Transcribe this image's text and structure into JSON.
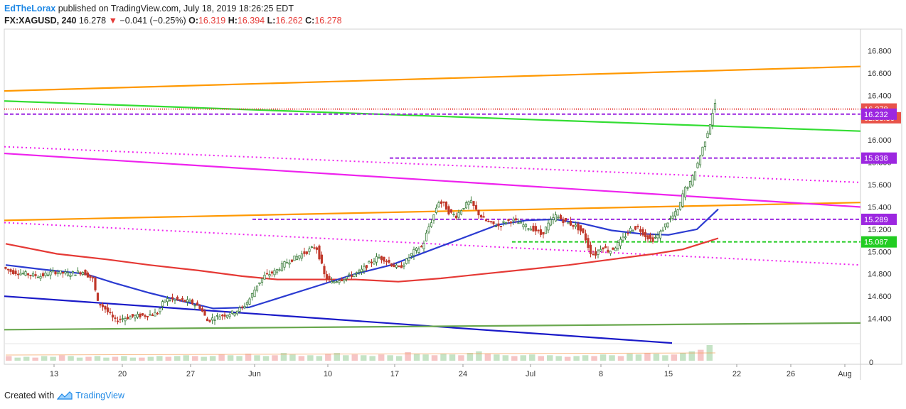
{
  "header": {
    "user": "EdTheLorax",
    "published": "published on TradingView.com, July 18, 2019 18:26:25 EDT",
    "symbol": "FX:XAGUSD, 240",
    "last": "16.278",
    "change": "−0.041 (−0.25%)",
    "open_label": "O:",
    "open": "16.319",
    "high_label": "H:",
    "high": "16.394",
    "low_label": "L:",
    "low": "16.262",
    "close_label": "C:",
    "close": "16.278"
  },
  "footer": {
    "created_with": "Created with",
    "brand": "TradingView"
  },
  "colors": {
    "up": "#3f7f3f",
    "down": "#c0392b",
    "ma_red": "#e53935",
    "ma_blue": "#2b3bd1",
    "orange": "#ff9800",
    "green_line": "#33dd33",
    "magenta": "#ee22ee",
    "purple": "#9c27e0",
    "trend_blue": "#1a1ac8",
    "olive": "#6aa84f",
    "last_price": "#e8534a"
  },
  "chart_data": {
    "type": "candlestick",
    "symbol": "XAGUSD",
    "interval": "240",
    "ylim": [
      14.2,
      16.95
    ],
    "y_ticks": [
      "16.800",
      "16.600",
      "16.400",
      "16.200",
      "16.000",
      "15.800",
      "15.600",
      "15.400",
      "15.200",
      "15.000",
      "14.800",
      "14.600",
      "14.400"
    ],
    "x_ticks": [
      "13",
      "20",
      "27",
      "Jun",
      "10",
      "17",
      "24",
      "Jul",
      "8",
      "15",
      "22",
      "26",
      "Aug"
    ],
    "price_tags": [
      {
        "label": "16.278",
        "value": 16.278,
        "color": "#e8534a"
      },
      {
        "label": "02:33:36",
        "value": 16.2,
        "color": "#e8534a"
      },
      {
        "label": "16.232",
        "value": 16.232,
        "color": "#9c27e0"
      },
      {
        "label": "15.838",
        "value": 15.838,
        "color": "#9c27e0"
      },
      {
        "label": "15.289",
        "value": 15.289,
        "color": "#9c27e0"
      },
      {
        "label": "15.087",
        "value": 15.087,
        "color": "#22cc22"
      },
      {
        "label": "0",
        "value": null,
        "color": "#333333"
      }
    ],
    "price_path": [
      [
        0,
        14.9
      ],
      [
        10,
        14.85
      ],
      [
        20,
        14.82
      ],
      [
        40,
        14.8
      ],
      [
        60,
        14.78
      ],
      [
        80,
        14.82
      ],
      [
        100,
        14.8
      ],
      [
        120,
        14.82
      ],
      [
        135,
        14.75
      ],
      [
        140,
        14.55
      ],
      [
        150,
        14.5
      ],
      [
        160,
        14.42
      ],
      [
        165,
        14.38
      ],
      [
        175,
        14.4
      ],
      [
        190,
        14.42
      ],
      [
        210,
        14.43
      ],
      [
        225,
        14.45
      ],
      [
        235,
        14.57
      ],
      [
        250,
        14.57
      ],
      [
        270,
        14.55
      ],
      [
        285,
        14.5
      ],
      [
        295,
        14.38
      ],
      [
        310,
        14.42
      ],
      [
        330,
        14.45
      ],
      [
        345,
        14.5
      ],
      [
        355,
        14.58
      ],
      [
        365,
        14.7
      ],
      [
        375,
        14.78
      ],
      [
        390,
        14.82
      ],
      [
        405,
        14.9
      ],
      [
        420,
        14.95
      ],
      [
        435,
        15.0
      ],
      [
        448,
        15.05
      ],
      [
        455,
        14.9
      ],
      [
        460,
        14.78
      ],
      [
        470,
        14.72
      ],
      [
        480,
        14.75
      ],
      [
        495,
        14.78
      ],
      [
        510,
        14.82
      ],
      [
        520,
        14.88
      ],
      [
        535,
        14.95
      ],
      [
        545,
        14.93
      ],
      [
        555,
        14.88
      ],
      [
        565,
        14.85
      ],
      [
        575,
        14.92
      ],
      [
        585,
        15.0
      ],
      [
        598,
        15.05
      ],
      [
        605,
        15.2
      ],
      [
        612,
        15.3
      ],
      [
        620,
        15.45
      ],
      [
        628,
        15.42
      ],
      [
        635,
        15.35
      ],
      [
        645,
        15.32
      ],
      [
        655,
        15.4
      ],
      [
        665,
        15.45
      ],
      [
        675,
        15.35
      ],
      [
        685,
        15.28
      ],
      [
        695,
        15.25
      ],
      [
        705,
        15.23
      ],
      [
        715,
        15.27
      ],
      [
        725,
        15.28
      ],
      [
        735,
        15.25
      ],
      [
        745,
        15.22
      ],
      [
        755,
        15.2
      ],
      [
        765,
        15.15
      ],
      [
        775,
        15.25
      ],
      [
        785,
        15.32
      ],
      [
        795,
        15.28
      ],
      [
        805,
        15.25
      ],
      [
        815,
        15.22
      ],
      [
        825,
        15.15
      ],
      [
        833,
        15.0
      ],
      [
        840,
        14.97
      ],
      [
        850,
        15.05
      ],
      [
        860,
        15.0
      ],
      [
        870,
        15.05
      ],
      [
        880,
        15.12
      ],
      [
        890,
        15.2
      ],
      [
        900,
        15.22
      ],
      [
        910,
        15.15
      ],
      [
        920,
        15.1
      ],
      [
        930,
        15.15
      ],
      [
        940,
        15.25
      ],
      [
        950,
        15.32
      ],
      [
        958,
        15.38
      ],
      [
        965,
        15.55
      ],
      [
        975,
        15.62
      ],
      [
        985,
        15.8
      ],
      [
        995,
        16.0
      ],
      [
        1002,
        16.15
      ],
      [
        1008,
        16.32
      ]
    ],
    "volumes": [
      0.3,
      0.2,
      0.25,
      0.2,
      0.3,
      0.25,
      0.35,
      0.3,
      0.2,
      0.25,
      0.3,
      0.2,
      0.25,
      0.3,
      0.2,
      0.2,
      0.25,
      0.3,
      0.25,
      0.3,
      0.35,
      0.3,
      0.25,
      0.3,
      0.4,
      0.35,
      0.3,
      0.45,
      0.35,
      0.3,
      0.35,
      0.5,
      0.4,
      0.3,
      0.35,
      0.3,
      0.45,
      0.5,
      0.35,
      0.4,
      0.35,
      0.3,
      0.4,
      0.35,
      0.3,
      0.55,
      0.45,
      0.4,
      0.35,
      0.45,
      0.4,
      0.35,
      0.5,
      0.6,
      0.45,
      0.4,
      0.35,
      0.3,
      0.35,
      0.4,
      0.3,
      0.35,
      0.3,
      0.25,
      0.3,
      0.35,
      0.3,
      0.4,
      0.35,
      0.3,
      0.45,
      0.4,
      0.5,
      0.45,
      0.35,
      0.4,
      0.5,
      0.6,
      0.7,
      1.0
    ],
    "series": [
      {
        "name": "",
        "color": "#e53935",
        "points": [
          [
            8,
            15.07
          ],
          [
            80,
            14.98
          ],
          [
            150,
            14.93
          ],
          [
            210,
            14.88
          ],
          [
            280,
            14.83
          ],
          [
            340,
            14.78
          ],
          [
            390,
            14.75
          ],
          [
            440,
            14.75
          ],
          [
            500,
            14.75
          ],
          [
            560,
            14.73
          ],
          [
            620,
            14.76
          ],
          [
            680,
            14.8
          ],
          [
            740,
            14.84
          ],
          [
            800,
            14.88
          ],
          [
            860,
            14.93
          ],
          [
            920,
            14.98
          ],
          [
            960,
            15.02
          ],
          [
            990,
            15.08
          ],
          [
            1010,
            15.12
          ]
        ]
      },
      {
        "name": "",
        "color": "#2b3bd1",
        "points": [
          [
            8,
            14.88
          ],
          [
            60,
            14.84
          ],
          [
            120,
            14.8
          ],
          [
            160,
            14.72
          ],
          [
            210,
            14.63
          ],
          [
            260,
            14.55
          ],
          [
            300,
            14.49
          ],
          [
            350,
            14.5
          ],
          [
            400,
            14.6
          ],
          [
            450,
            14.7
          ],
          [
            500,
            14.8
          ],
          [
            550,
            14.88
          ],
          [
            600,
            15.0
          ],
          [
            650,
            15.12
          ],
          [
            700,
            15.24
          ],
          [
            740,
            15.28
          ],
          [
            780,
            15.29
          ],
          [
            820,
            15.25
          ],
          [
            860,
            15.19
          ],
          [
            900,
            15.16
          ],
          [
            940,
            15.15
          ],
          [
            980,
            15.2
          ],
          [
            1010,
            15.38
          ]
        ]
      }
    ],
    "lines": [
      {
        "color": "#ff9800",
        "dash": "",
        "from": [
          6,
          16.44
        ],
        "to": [
          1210,
          16.66
        ]
      },
      {
        "color": "#ff9800",
        "dash": "",
        "from": [
          6,
          15.28
        ],
        "to": [
          1210,
          15.44
        ]
      },
      {
        "color": "#33dd33",
        "dash": "",
        "from": [
          6,
          16.35
        ],
        "to": [
          1210,
          16.08
        ]
      },
      {
        "color": "#ee22ee",
        "dash": "",
        "from": [
          6,
          15.88
        ],
        "to": [
          1210,
          15.4
        ]
      },
      {
        "color": "#ee22ee",
        "dash": "2,4",
        "from": [
          6,
          15.94
        ],
        "to": [
          1210,
          15.62
        ]
      },
      {
        "color": "#ee22ee",
        "dash": "2,4",
        "from": [
          6,
          15.26
        ],
        "to": [
          1210,
          14.88
        ]
      },
      {
        "color": "#9c27e0",
        "dash": "5,3",
        "from": [
          6,
          16.232
        ],
        "to": [
          1210,
          16.232
        ]
      },
      {
        "color": "#9c27e0",
        "dash": "5,3",
        "from": [
          548,
          15.838
        ],
        "to": [
          1210,
          15.838
        ]
      },
      {
        "color": "#9c27e0",
        "dash": "5,3",
        "from": [
          355,
          15.289
        ],
        "to": [
          1210,
          15.289
        ]
      },
      {
        "color": "#22cc22",
        "dash": "5,3",
        "from": [
          720,
          15.087
        ],
        "to": [
          1210,
          15.087
        ]
      },
      {
        "color": "#e53935",
        "dash": "1,2",
        "from": [
          6,
          16.278
        ],
        "to": [
          1210,
          16.278
        ]
      },
      {
        "color": "#1a1ac8",
        "dash": "",
        "from": [
          6,
          14.6
        ],
        "to": [
          945,
          14.18
        ]
      },
      {
        "color": "#6aa84f",
        "dash": "",
        "from": [
          6,
          14.3
        ],
        "to": [
          1210,
          14.36
        ]
      }
    ]
  }
}
